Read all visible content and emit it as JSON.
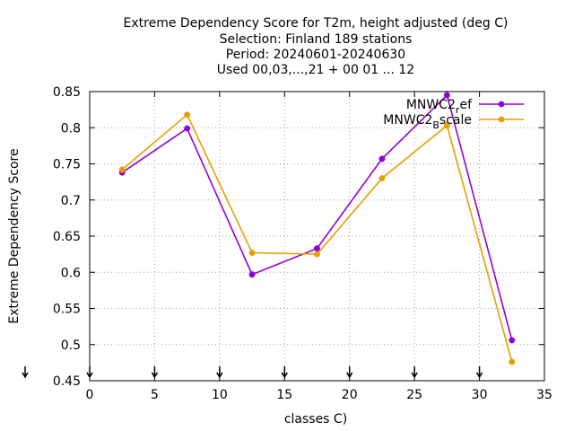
{
  "chart_data": {
    "type": "line",
    "title_lines": [
      "Extreme Dependency Score  for T2m, height adjusted (deg C)",
      "Selection: Finland    189 stations",
      "Period: 20240601-20240630",
      "Used 00,03,...,21 + 00 01 ... 12"
    ],
    "xlabel": "classes C)",
    "ylabel": "Extreme Dependency Score",
    "xlim": [
      0,
      35
    ],
    "ylim": [
      0.45,
      0.85
    ],
    "xticks": [
      0,
      5,
      10,
      15,
      20,
      25,
      30,
      35
    ],
    "xtick_labels": [
      "0",
      "5",
      "10",
      "15",
      "20",
      "25",
      "30",
      "35"
    ],
    "yticks": [
      0.45,
      0.5,
      0.55,
      0.6,
      0.65,
      0.7,
      0.75,
      0.8,
      0.85
    ],
    "ytick_labels": [
      "0.45",
      "0.5",
      "0.55",
      "0.6",
      "0.65",
      "0.7",
      "0.75",
      "0.8",
      "0.85"
    ],
    "grid": true,
    "legend_position": "top-right",
    "series": [
      {
        "name_main": "MNWC2",
        "name_sub": "r",
        "name_rest": "ef",
        "color": "#9400d3",
        "x": [
          2.5,
          7.5,
          12.5,
          17.5,
          22.5,
          27.5,
          32.5
        ],
        "y": [
          0.738,
          0.799,
          0.597,
          0.633,
          0.757,
          0.845,
          0.506
        ]
      },
      {
        "name_main": "MNWC2",
        "name_sub": "B",
        "name_rest": "scale",
        "color": "#e69f00",
        "x": [
          2.5,
          7.5,
          12.5,
          17.5,
          22.5,
          27.5,
          32.5
        ],
        "y": [
          0.742,
          0.818,
          0.627,
          0.625,
          0.73,
          0.803,
          0.476
        ]
      }
    ],
    "bottom_markers_x": [
      0,
      5,
      10,
      15,
      20,
      25,
      30
    ]
  }
}
